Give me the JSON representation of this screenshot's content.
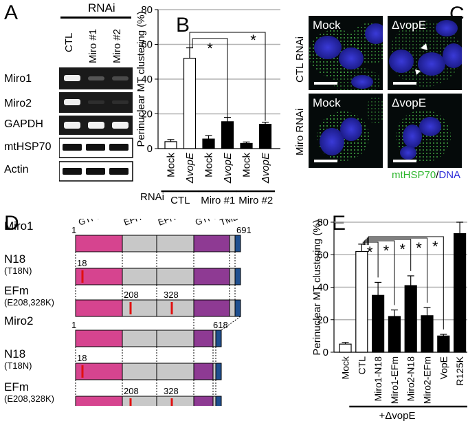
{
  "panels": {
    "A": "A",
    "B": "B",
    "C": "C",
    "D": "D",
    "E": "E"
  },
  "panelA": {
    "header": "RNAi",
    "lanes": [
      "CTL",
      "Miro #1",
      "Miro #2"
    ],
    "rows": [
      "Miro1",
      "Miro2",
      "GAPDH",
      "mtHSP70",
      "Actin"
    ]
  },
  "panelB": {
    "ylabel": "Perinuclear MT clustering (%)",
    "yticks": [
      "0",
      "20",
      "40",
      "60",
      "80"
    ],
    "categories": [
      "Mock",
      "ΔvopE",
      "Mock",
      "ΔvopE",
      "Mock",
      "ΔvopE"
    ],
    "rnai_label": "RNAi",
    "groups": [
      "CTL",
      "Miro #1",
      "Miro #2"
    ],
    "stars": [
      "*",
      "*"
    ]
  },
  "panelC": {
    "cols": [
      "Mock",
      "ΔvopE"
    ],
    "rows": [
      "CTL RNAi",
      "Miro RNAi"
    ],
    "stain_a": "mtHSP70",
    "stain_sep": "/",
    "stain_b": "DNA"
  },
  "panelD": {
    "domains": [
      "GTPase-I",
      "EFH-I",
      "EFH-II",
      "GTPase-II",
      "TMD"
    ],
    "constructs": [
      {
        "name": "Miro1",
        "sub": ""
      },
      {
        "name": "N18",
        "sub": "(T18N)"
      },
      {
        "name": "EFm",
        "sub": "(E208,328K)"
      },
      {
        "name": "Miro2",
        "sub": ""
      },
      {
        "name": "N18",
        "sub": "(T18N)"
      },
      {
        "name": "EFm",
        "sub": "(E208,328K)"
      }
    ],
    "numbers": {
      "start": "1",
      "end1": "691",
      "n18": "18",
      "e208": "208",
      "e328": "328",
      "start2": "1",
      "end2": "618",
      "n18b": "18",
      "e208b": "208",
      "e328b": "328"
    },
    "colors": {
      "gtpase1": "#d6448f",
      "efh": "#c8c8c8",
      "gtpase2": "#8e3a93",
      "tmd": "#1f4f8f",
      "mut": "#e01010"
    }
  },
  "panelE": {
    "ylabel": "Perinuclear MT clustering (%)",
    "yticks": [
      "0",
      "20",
      "40",
      "60",
      "80"
    ],
    "categories": [
      "Mock",
      "CTL",
      "Miro1-N18",
      "Miro1-EFm",
      "Miro2-N18",
      "Miro2-EFm",
      "VopE",
      "R125K"
    ],
    "stars": [
      "*",
      "*",
      "*",
      "*",
      "*"
    ],
    "footer": "+ΔvopE"
  },
  "chart_data": [
    {
      "type": "bar",
      "ylabel": "Perinuclear MT clustering (%)",
      "ylim": [
        0,
        80
      ],
      "categories": [
        "Mock",
        "ΔvopE",
        "Mock",
        "ΔvopE",
        "Mock",
        "ΔvopE"
      ],
      "values": [
        4,
        52,
        5.5,
        15.5,
        3,
        14
      ],
      "errors": [
        1.2,
        6,
        2,
        2.5,
        0.8,
        1.2
      ],
      "fill": [
        "white",
        "white",
        "black",
        "black",
        "black",
        "black"
      ]
    },
    {
      "type": "bar",
      "ylabel": "Perinuclear MT clustering (%)",
      "ylim": [
        0,
        80
      ],
      "categories": [
        "Mock",
        "CTL",
        "Miro1-N18",
        "Miro1-EFm",
        "Miro2-N18",
        "Miro2-EFm",
        "VopE",
        "R125K"
      ],
      "values": [
        5,
        62,
        35,
        22,
        41,
        22.5,
        10,
        73
      ],
      "errors": [
        1,
        4.5,
        8,
        4,
        6,
        5,
        1,
        7
      ],
      "fill": [
        "white",
        "white",
        "black",
        "black",
        "black",
        "black",
        "black",
        "black"
      ]
    }
  ]
}
